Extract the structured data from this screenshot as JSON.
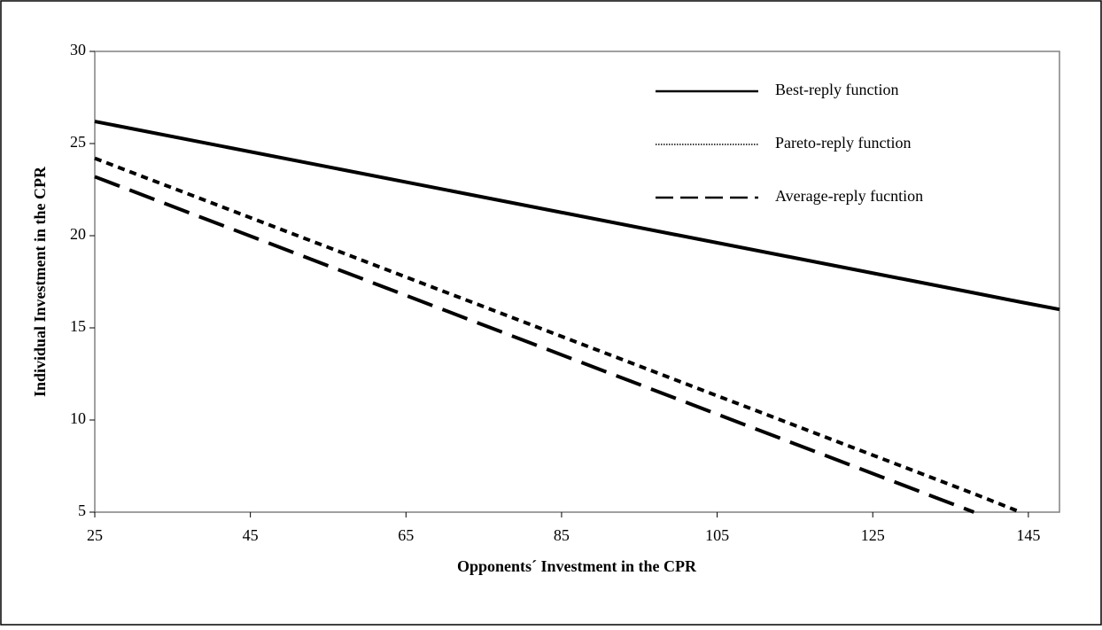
{
  "chart_data": {
    "type": "line",
    "x_label": "Opponents´ Investment in the CPR",
    "y_label": "Individual Investment in the CPR",
    "x": [
      25,
      138,
      144,
      149
    ],
    "series": [
      {
        "name": "Best-reply function",
        "color": "#000000",
        "line_style": "solid",
        "values": [
          26.2,
          16.9,
          16.4,
          16.0
        ]
      },
      {
        "name": "Pareto-reply function",
        "color": "#000000",
        "line_style": "dotted",
        "values": [
          24.2,
          6.0,
          5,
          null
        ]
      },
      {
        "name": "Average-reply fucntion",
        "color": "#000000",
        "line_style": "dashed",
        "values": [
          23.2,
          5,
          null,
          null
        ]
      }
    ],
    "xlim": [
      25,
      149
    ],
    "xticks": [
      25,
      45,
      65,
      85,
      105,
      125,
      145
    ],
    "ylim": [
      5,
      30
    ],
    "yticks": [
      5,
      10,
      15,
      20,
      25,
      30
    ],
    "grid": false,
    "legend": "upper right"
  }
}
